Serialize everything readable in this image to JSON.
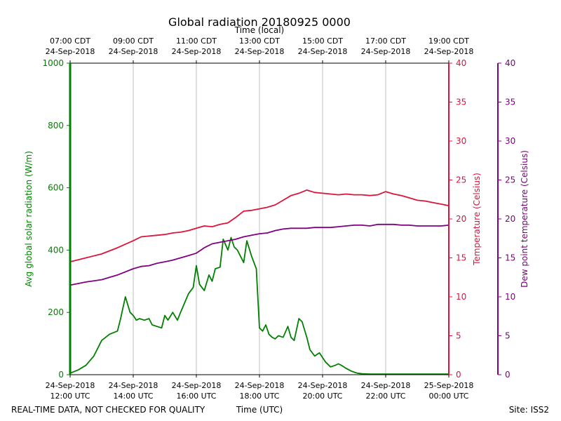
{
  "chart_data": {
    "type": "line",
    "title": "Global radiation 20180925 0000",
    "top_axis_label": "Time (local)",
    "xlabel": "Time (UTC)",
    "footer_left": "REAL-TIME DATA, NOT CHECKED FOR QUALITY",
    "footer_right": "Site: ISS2",
    "x_range_hours_utc": [
      12,
      24
    ],
    "x_ticks": [
      {
        "hour": 12,
        "date": "24-Sep-2018",
        "utc": "12:00 UTC",
        "local": "07:00 CDT",
        "local_date": "24-Sep-2018"
      },
      {
        "hour": 14,
        "date": "24-Sep-2018",
        "utc": "14:00 UTC",
        "local": "09:00 CDT",
        "local_date": "24-Sep-2018"
      },
      {
        "hour": 16,
        "date": "24-Sep-2018",
        "utc": "16:00 UTC",
        "local": "11:00 CDT",
        "local_date": "24-Sep-2018"
      },
      {
        "hour": 18,
        "date": "24-Sep-2018",
        "utc": "18:00 UTC",
        "local": "13:00 CDT",
        "local_date": "24-Sep-2018"
      },
      {
        "hour": 20,
        "date": "24-Sep-2018",
        "utc": "20:00 UTC",
        "local": "15:00 CDT",
        "local_date": "24-Sep-2018"
      },
      {
        "hour": 22,
        "date": "24-Sep-2018",
        "utc": "22:00 UTC",
        "local": "17:00 CDT",
        "local_date": "24-Sep-2018"
      },
      {
        "hour": 24,
        "date": "25-Sep-2018",
        "utc": "00:00 UTC",
        "local": "19:00 CDT",
        "local_date": "24-Sep-2018"
      }
    ],
    "axes": {
      "radiation": {
        "label": "Avg global solar radiation (W/m)",
        "range": [
          0,
          1000
        ],
        "ticks": [
          0,
          200,
          400,
          600,
          800,
          1000
        ],
        "color": "#008000"
      },
      "temperature": {
        "label": "Temperature (Celsius)",
        "range": [
          0,
          40
        ],
        "ticks": [
          0,
          5,
          10,
          15,
          20,
          25,
          30,
          35,
          40
        ],
        "color": "#dc143c"
      },
      "dewpoint": {
        "label": "Dew point temperature (Celsius)",
        "range": [
          0,
          40
        ],
        "ticks": [
          0,
          5,
          10,
          15,
          20,
          25,
          30,
          35,
          40
        ],
        "color": "#800080"
      }
    },
    "series": [
      {
        "name": "Avg global solar radiation",
        "axis": "radiation",
        "color": "#008000",
        "x": [
          12.0,
          12.25,
          12.5,
          12.75,
          13.0,
          13.25,
          13.5,
          13.6,
          13.75,
          13.9,
          14.0,
          14.1,
          14.2,
          14.35,
          14.5,
          14.6,
          14.75,
          14.9,
          15.0,
          15.1,
          15.25,
          15.4,
          15.5,
          15.75,
          15.9,
          16.0,
          16.1,
          16.25,
          16.4,
          16.5,
          16.6,
          16.75,
          16.85,
          17.0,
          17.1,
          17.2,
          17.3,
          17.5,
          17.6,
          17.75,
          17.9,
          18.0,
          18.1,
          18.2,
          18.3,
          18.4,
          18.5,
          18.6,
          18.75,
          18.9,
          19.0,
          19.1,
          19.25,
          19.35,
          19.5,
          19.6,
          19.75,
          19.9,
          20.0,
          20.1,
          20.25,
          20.4,
          20.5,
          20.6,
          20.75,
          20.9,
          21.0,
          21.1,
          21.25,
          21.5,
          21.6,
          21.75,
          21.9,
          22.0,
          22.25,
          22.5,
          22.75,
          23.0,
          23.25,
          23.5,
          23.75,
          24.0
        ],
        "values": [
          5,
          15,
          30,
          60,
          110,
          130,
          140,
          180,
          250,
          200,
          190,
          175,
          180,
          175,
          180,
          160,
          155,
          150,
          190,
          175,
          200,
          175,
          200,
          260,
          280,
          350,
          290,
          270,
          320,
          300,
          340,
          345,
          435,
          400,
          440,
          410,
          400,
          360,
          430,
          380,
          340,
          150,
          140,
          160,
          130,
          120,
          115,
          125,
          120,
          155,
          120,
          110,
          180,
          170,
          120,
          80,
          60,
          70,
          55,
          40,
          25,
          30,
          35,
          30,
          20,
          12,
          8,
          5,
          3,
          2,
          2,
          2,
          2,
          2,
          2,
          2,
          2,
          2,
          2,
          2,
          2,
          2
        ]
      },
      {
        "name": "Temperature",
        "axis": "temperature",
        "color": "#dc143c",
        "x": [
          12.0,
          12.5,
          13.0,
          13.5,
          14.0,
          14.25,
          14.5,
          14.75,
          15.0,
          15.25,
          15.5,
          15.75,
          16.0,
          16.25,
          16.5,
          16.75,
          17.0,
          17.25,
          17.5,
          17.75,
          18.0,
          18.25,
          18.5,
          18.75,
          19.0,
          19.25,
          19.5,
          19.75,
          20.0,
          20.25,
          20.5,
          20.75,
          21.0,
          21.25,
          21.5,
          21.75,
          22.0,
          22.25,
          22.5,
          22.75,
          23.0,
          23.25,
          23.5,
          23.75,
          24.0
        ],
        "values": [
          14.5,
          15.0,
          15.5,
          16.3,
          17.2,
          17.7,
          17.8,
          17.9,
          18.0,
          18.2,
          18.3,
          18.5,
          18.8,
          19.1,
          19.0,
          19.3,
          19.5,
          20.2,
          21.0,
          21.1,
          21.3,
          21.5,
          21.8,
          22.4,
          23.0,
          23.3,
          23.7,
          23.4,
          23.3,
          23.2,
          23.1,
          23.2,
          23.1,
          23.1,
          23.0,
          23.1,
          23.5,
          23.2,
          23.0,
          22.7,
          22.4,
          22.3,
          22.1,
          21.9,
          21.7
        ]
      },
      {
        "name": "Dew point temperature",
        "axis": "dewpoint",
        "color": "#800080",
        "x": [
          12.0,
          12.5,
          13.0,
          13.5,
          14.0,
          14.25,
          14.5,
          14.75,
          15.0,
          15.25,
          15.5,
          15.75,
          16.0,
          16.25,
          16.5,
          16.75,
          17.0,
          17.25,
          17.5,
          17.75,
          18.0,
          18.25,
          18.5,
          18.75,
          19.0,
          19.25,
          19.5,
          19.75,
          20.0,
          20.25,
          20.5,
          20.75,
          21.0,
          21.25,
          21.5,
          21.75,
          22.0,
          22.25,
          22.5,
          22.75,
          23.0,
          23.25,
          23.5,
          23.75,
          24.0
        ],
        "values": [
          11.5,
          11.9,
          12.2,
          12.8,
          13.6,
          13.9,
          14.0,
          14.3,
          14.5,
          14.7,
          15.0,
          15.3,
          15.6,
          16.3,
          16.8,
          17.0,
          17.2,
          17.4,
          17.7,
          17.9,
          18.1,
          18.2,
          18.5,
          18.7,
          18.8,
          18.8,
          18.8,
          18.9,
          18.9,
          18.9,
          19.0,
          19.1,
          19.2,
          19.2,
          19.1,
          19.3,
          19.3,
          19.3,
          19.2,
          19.2,
          19.1,
          19.1,
          19.1,
          19.1,
          19.2
        ]
      }
    ]
  }
}
